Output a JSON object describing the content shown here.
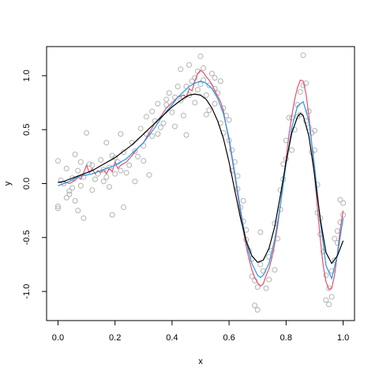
{
  "chart_data": {
    "type": "scatter",
    "xlabel": "x",
    "ylabel": "y",
    "xlim": [
      -0.04,
      1.04
    ],
    "ylim": [
      -1.27,
      1.27
    ],
    "x_ticks": [
      0.0,
      0.2,
      0.4,
      0.6,
      0.8,
      1.0
    ],
    "x_tick_labels": [
      "0.0",
      "0.2",
      "0.4",
      "0.6",
      "0.8",
      "1.0"
    ],
    "y_ticks": [
      -1.0,
      -0.5,
      0.0,
      0.5,
      1.0
    ],
    "y_tick_labels": [
      "-1.0",
      "-0.5",
      "0.0",
      "0.5",
      "1.0"
    ],
    "grid": false,
    "legend": "none",
    "points_color": "#b3b3b3",
    "points": [
      [
        0.0,
        0.21
      ],
      [
        0.0,
        -0.21
      ],
      [
        0.0,
        -0.23
      ],
      [
        0.01,
        0.03
      ],
      [
        0.02,
        0.0
      ],
      [
        0.03,
        0.14
      ],
      [
        0.03,
        -0.13
      ],
      [
        0.04,
        -0.07
      ],
      [
        0.04,
        -0.1
      ],
      [
        0.05,
        0.05
      ],
      [
        0.05,
        -0.04
      ],
      [
        0.06,
        0.27
      ],
      [
        0.06,
        -0.16
      ],
      [
        0.07,
        0.12
      ],
      [
        0.07,
        -0.25
      ],
      [
        0.08,
        0.2
      ],
      [
        0.08,
        -0.02
      ],
      [
        0.09,
        -0.32
      ],
      [
        0.09,
        0.06
      ],
      [
        0.1,
        0.47
      ],
      [
        0.11,
        0.18
      ],
      [
        0.12,
        0.17
      ],
      [
        0.12,
        -0.06
      ],
      [
        0.13,
        0.04
      ],
      [
        0.14,
        0.09
      ],
      [
        0.15,
        0.22
      ],
      [
        0.16,
        0.02
      ],
      [
        0.16,
        0.13
      ],
      [
        0.17,
        0.06
      ],
      [
        0.17,
        0.38
      ],
      [
        0.18,
        -0.03
      ],
      [
        0.18,
        0.15
      ],
      [
        0.19,
        0.26
      ],
      [
        0.19,
        -0.29
      ],
      [
        0.2,
        0.24
      ],
      [
        0.2,
        0.09
      ],
      [
        0.21,
        0.2
      ],
      [
        0.22,
        0.12
      ],
      [
        0.22,
        0.46
      ],
      [
        0.23,
        0.29
      ],
      [
        0.23,
        -0.22
      ],
      [
        0.24,
        0.1
      ],
      [
        0.25,
        0.17
      ],
      [
        0.26,
        0.38
      ],
      [
        0.27,
        0.02
      ],
      [
        0.27,
        0.3
      ],
      [
        0.28,
        0.25
      ],
      [
        0.29,
        0.51
      ],
      [
        0.3,
        0.21
      ],
      [
        0.3,
        0.35
      ],
      [
        0.31,
        0.62
      ],
      [
        0.31,
        0.46
      ],
      [
        0.32,
        0.08
      ],
      [
        0.33,
        0.44
      ],
      [
        0.33,
        0.67
      ],
      [
        0.34,
        0.58
      ],
      [
        0.35,
        0.74
      ],
      [
        0.35,
        0.46
      ],
      [
        0.36,
        0.52
      ],
      [
        0.37,
        0.56
      ],
      [
        0.38,
        0.73
      ],
      [
        0.39,
        0.84
      ],
      [
        0.4,
        0.66
      ],
      [
        0.41,
        0.8
      ],
      [
        0.41,
        0.53
      ],
      [
        0.42,
        0.9
      ],
      [
        0.43,
        0.77
      ],
      [
        0.43,
        1.06
      ],
      [
        0.44,
        0.63
      ],
      [
        0.45,
        0.9
      ],
      [
        0.45,
        0.45
      ],
      [
        0.46,
        1.1
      ],
      [
        0.46,
        0.82
      ],
      [
        0.47,
        0.95
      ],
      [
        0.48,
        0.75
      ],
      [
        0.48,
        0.98
      ],
      [
        0.49,
        1.04
      ],
      [
        0.49,
        0.87
      ],
      [
        0.5,
        1.18
      ],
      [
        0.5,
        0.92
      ],
      [
        0.51,
        0.96
      ],
      [
        0.51,
        1.07
      ],
      [
        0.52,
        0.82
      ],
      [
        0.53,
        0.91
      ],
      [
        0.53,
        0.68
      ],
      [
        0.54,
        1.02
      ],
      [
        0.55,
        0.88
      ],
      [
        0.55,
        0.74
      ],
      [
        0.56,
        0.84
      ],
      [
        0.57,
        0.56
      ],
      [
        0.57,
        0.95
      ],
      [
        0.58,
        0.7
      ],
      [
        0.58,
        0.47
      ],
      [
        0.59,
        0.63
      ],
      [
        0.6,
        0.4
      ],
      [
        0.6,
        0.59
      ],
      [
        0.61,
        0.31
      ],
      [
        0.61,
        0.12
      ],
      [
        0.62,
        0.2
      ],
      [
        0.63,
        -0.05
      ],
      [
        0.63,
        0.07
      ],
      [
        0.64,
        -0.22
      ],
      [
        0.65,
        -0.16
      ],
      [
        0.65,
        -0.35
      ],
      [
        0.66,
        -0.43
      ],
      [
        0.66,
        -0.52
      ],
      [
        0.67,
        -0.62
      ],
      [
        0.68,
        -0.7
      ],
      [
        0.68,
        -0.86
      ],
      [
        0.69,
        -0.9
      ],
      [
        0.69,
        -1.13
      ],
      [
        0.7,
        -0.96
      ],
      [
        0.7,
        -1.17
      ],
      [
        0.71,
        -0.75
      ],
      [
        0.71,
        -0.45
      ],
      [
        0.72,
        -0.81
      ],
      [
        0.73,
        -0.97
      ],
      [
        0.74,
        -0.89
      ],
      [
        0.74,
        -0.68
      ],
      [
        0.75,
        -0.62
      ],
      [
        0.76,
        -0.8
      ],
      [
        0.76,
        -0.37
      ],
      [
        0.77,
        -0.51
      ],
      [
        0.78,
        -0.24
      ],
      [
        0.78,
        -0.06
      ],
      [
        0.79,
        0.04
      ],
      [
        0.79,
        0.18
      ],
      [
        0.8,
        0.23
      ],
      [
        0.8,
        0.4
      ],
      [
        0.81,
        0.61
      ],
      [
        0.82,
        0.31
      ],
      [
        0.82,
        0.61
      ],
      [
        0.83,
        0.5
      ],
      [
        0.84,
        0.73
      ],
      [
        0.84,
        0.62
      ],
      [
        0.85,
        0.85
      ],
      [
        0.85,
        0.64
      ],
      [
        0.86,
        1.19
      ],
      [
        0.86,
        0.91
      ],
      [
        0.87,
        0.93
      ],
      [
        0.87,
        0.58
      ],
      [
        0.88,
        0.67
      ],
      [
        0.88,
        0.52
      ],
      [
        0.89,
        0.47
      ],
      [
        0.89,
        0.29
      ],
      [
        0.9,
        0.49
      ],
      [
        0.9,
        0.31
      ],
      [
        0.91,
        -0.01
      ],
      [
        0.91,
        -0.27
      ],
      [
        0.92,
        -0.47
      ],
      [
        0.92,
        -0.32
      ],
      [
        0.93,
        -0.63
      ],
      [
        0.94,
        -0.85
      ],
      [
        0.94,
        -1.08
      ],
      [
        0.95,
        -0.97
      ],
      [
        0.95,
        -1.12
      ],
      [
        0.96,
        -0.81
      ],
      [
        0.96,
        -1.05
      ],
      [
        0.97,
        -0.51
      ],
      [
        0.97,
        -0.71
      ],
      [
        0.98,
        -0.55
      ],
      [
        0.98,
        -0.44
      ],
      [
        0.99,
        -0.36
      ],
      [
        0.99,
        -0.15
      ],
      [
        1.0,
        -0.18
      ],
      [
        1.0,
        -0.29
      ],
      [
        0.55,
        0.98
      ],
      [
        0.52,
        0.64
      ],
      [
        0.44,
        0.8
      ],
      [
        0.38,
        0.78
      ]
    ],
    "curves": [
      {
        "color": "#df536b",
        "values": [
          [
            0.0,
            0.01
          ],
          [
            0.02,
            0.02
          ],
          [
            0.04,
            0.0
          ],
          [
            0.06,
            0.03
          ],
          [
            0.07,
            0.06
          ],
          [
            0.08,
            0.04
          ],
          [
            0.09,
            0.1
          ],
          [
            0.1,
            0.17
          ],
          [
            0.11,
            0.1
          ],
          [
            0.12,
            0.14
          ],
          [
            0.13,
            0.09
          ],
          [
            0.14,
            0.12
          ],
          [
            0.15,
            0.1
          ],
          [
            0.16,
            0.13
          ],
          [
            0.17,
            0.09
          ],
          [
            0.18,
            0.14
          ],
          [
            0.19,
            0.11
          ],
          [
            0.2,
            0.2
          ],
          [
            0.21,
            0.14
          ],
          [
            0.22,
            0.17
          ],
          [
            0.24,
            0.2
          ],
          [
            0.26,
            0.26
          ],
          [
            0.28,
            0.33
          ],
          [
            0.3,
            0.38
          ],
          [
            0.32,
            0.47
          ],
          [
            0.34,
            0.56
          ],
          [
            0.36,
            0.62
          ],
          [
            0.38,
            0.7
          ],
          [
            0.4,
            0.75
          ],
          [
            0.42,
            0.8
          ],
          [
            0.44,
            0.82
          ],
          [
            0.45,
            0.8
          ],
          [
            0.46,
            0.88
          ],
          [
            0.47,
            0.86
          ],
          [
            0.48,
            0.95
          ],
          [
            0.49,
            1.02
          ],
          [
            0.5,
            1.05
          ],
          [
            0.51,
            1.03
          ],
          [
            0.52,
            0.99
          ],
          [
            0.53,
            0.96
          ],
          [
            0.54,
            0.92
          ],
          [
            0.55,
            0.86
          ],
          [
            0.56,
            0.81
          ],
          [
            0.57,
            0.76
          ],
          [
            0.58,
            0.68
          ],
          [
            0.59,
            0.53
          ],
          [
            0.6,
            0.4
          ],
          [
            0.61,
            0.24
          ],
          [
            0.62,
            0.08
          ],
          [
            0.63,
            -0.1
          ],
          [
            0.64,
            -0.27
          ],
          [
            0.65,
            -0.44
          ],
          [
            0.66,
            -0.58
          ],
          [
            0.67,
            -0.7
          ],
          [
            0.68,
            -0.8
          ],
          [
            0.69,
            -0.87
          ],
          [
            0.7,
            -0.92
          ],
          [
            0.71,
            -0.95
          ],
          [
            0.72,
            -0.93
          ],
          [
            0.73,
            -0.85
          ],
          [
            0.74,
            -0.79
          ],
          [
            0.75,
            -0.69
          ],
          [
            0.76,
            -0.56
          ],
          [
            0.77,
            -0.4
          ],
          [
            0.78,
            -0.2
          ],
          [
            0.79,
            0.01
          ],
          [
            0.8,
            0.23
          ],
          [
            0.81,
            0.45
          ],
          [
            0.82,
            0.63
          ],
          [
            0.83,
            0.78
          ],
          [
            0.84,
            0.89
          ],
          [
            0.85,
            0.96
          ],
          [
            0.86,
            0.95
          ],
          [
            0.87,
            0.83
          ],
          [
            0.88,
            0.63
          ],
          [
            0.89,
            0.37
          ],
          [
            0.9,
            0.07
          ],
          [
            0.91,
            -0.23
          ],
          [
            0.92,
            -0.52
          ],
          [
            0.93,
            -0.76
          ],
          [
            0.94,
            -0.91
          ],
          [
            0.95,
            -0.98
          ],
          [
            0.96,
            -0.97
          ],
          [
            0.97,
            -0.85
          ],
          [
            0.98,
            -0.65
          ],
          [
            0.99,
            -0.42
          ],
          [
            1.0,
            -0.25
          ]
        ]
      },
      {
        "color": "#2297e6",
        "values": [
          [
            0.0,
            -0.02
          ],
          [
            0.02,
            0.0
          ],
          [
            0.04,
            0.02
          ],
          [
            0.06,
            0.05
          ],
          [
            0.08,
            0.07
          ],
          [
            0.1,
            0.08
          ],
          [
            0.12,
            0.09
          ],
          [
            0.14,
            0.11
          ],
          [
            0.16,
            0.13
          ],
          [
            0.18,
            0.15
          ],
          [
            0.2,
            0.17
          ],
          [
            0.22,
            0.2
          ],
          [
            0.24,
            0.23
          ],
          [
            0.26,
            0.28
          ],
          [
            0.28,
            0.33
          ],
          [
            0.3,
            0.38
          ],
          [
            0.32,
            0.45
          ],
          [
            0.34,
            0.52
          ],
          [
            0.36,
            0.6
          ],
          [
            0.38,
            0.67
          ],
          [
            0.4,
            0.73
          ],
          [
            0.42,
            0.8
          ],
          [
            0.44,
            0.85
          ],
          [
            0.46,
            0.9
          ],
          [
            0.48,
            0.93
          ],
          [
            0.5,
            0.95
          ],
          [
            0.52,
            0.93
          ],
          [
            0.54,
            0.88
          ],
          [
            0.56,
            0.79
          ],
          [
            0.58,
            0.65
          ],
          [
            0.6,
            0.42
          ],
          [
            0.62,
            0.1
          ],
          [
            0.64,
            -0.24
          ],
          [
            0.66,
            -0.54
          ],
          [
            0.68,
            -0.74
          ],
          [
            0.7,
            -0.85
          ],
          [
            0.71,
            -0.87
          ],
          [
            0.72,
            -0.85
          ],
          [
            0.74,
            -0.74
          ],
          [
            0.76,
            -0.52
          ],
          [
            0.78,
            -0.2
          ],
          [
            0.8,
            0.18
          ],
          [
            0.82,
            0.52
          ],
          [
            0.84,
            0.72
          ],
          [
            0.86,
            0.76
          ],
          [
            0.88,
            0.58
          ],
          [
            0.9,
            0.16
          ],
          [
            0.92,
            -0.36
          ],
          [
            0.94,
            -0.76
          ],
          [
            0.96,
            -0.88
          ],
          [
            0.98,
            -0.66
          ],
          [
            1.0,
            -0.32
          ]
        ]
      },
      {
        "color": "#000000",
        "values": [
          [
            0.0,
            0.01
          ],
          [
            0.02,
            0.02
          ],
          [
            0.04,
            0.04
          ],
          [
            0.06,
            0.06
          ],
          [
            0.08,
            0.08
          ],
          [
            0.1,
            0.1
          ],
          [
            0.12,
            0.12
          ],
          [
            0.14,
            0.15
          ],
          [
            0.16,
            0.18
          ],
          [
            0.18,
            0.21
          ],
          [
            0.2,
            0.24
          ],
          [
            0.22,
            0.28
          ],
          [
            0.24,
            0.32
          ],
          [
            0.26,
            0.36
          ],
          [
            0.28,
            0.41
          ],
          [
            0.3,
            0.46
          ],
          [
            0.32,
            0.51
          ],
          [
            0.34,
            0.56
          ],
          [
            0.36,
            0.61
          ],
          [
            0.38,
            0.66
          ],
          [
            0.4,
            0.71
          ],
          [
            0.42,
            0.75
          ],
          [
            0.44,
            0.79
          ],
          [
            0.46,
            0.82
          ],
          [
            0.48,
            0.83
          ],
          [
            0.5,
            0.82
          ],
          [
            0.52,
            0.78
          ],
          [
            0.54,
            0.7
          ],
          [
            0.56,
            0.58
          ],
          [
            0.58,
            0.42
          ],
          [
            0.6,
            0.2
          ],
          [
            0.62,
            -0.06
          ],
          [
            0.64,
            -0.32
          ],
          [
            0.66,
            -0.53
          ],
          [
            0.68,
            -0.67
          ],
          [
            0.7,
            -0.73
          ],
          [
            0.72,
            -0.71
          ],
          [
            0.74,
            -0.6
          ],
          [
            0.76,
            -0.4
          ],
          [
            0.78,
            -0.11
          ],
          [
            0.8,
            0.2
          ],
          [
            0.82,
            0.47
          ],
          [
            0.84,
            0.62
          ],
          [
            0.85,
            0.65
          ],
          [
            0.86,
            0.63
          ],
          [
            0.88,
            0.44
          ],
          [
            0.9,
            0.08
          ],
          [
            0.92,
            -0.33
          ],
          [
            0.94,
            -0.64
          ],
          [
            0.96,
            -0.74
          ],
          [
            0.98,
            -0.67
          ],
          [
            1.0,
            -0.53
          ]
        ]
      }
    ]
  }
}
